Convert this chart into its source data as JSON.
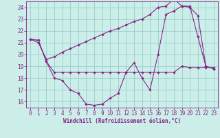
{
  "xlabel": "Windchill (Refroidissement éolien,°C)",
  "bg_color": "#cceee8",
  "grid_color": "#99cccc",
  "line_color": "#882288",
  "spine_color": "#882288",
  "x_ticks": [
    0,
    1,
    2,
    3,
    4,
    5,
    6,
    7,
    8,
    9,
    10,
    11,
    12,
    13,
    14,
    15,
    16,
    17,
    18,
    19,
    20,
    21,
    22,
    23
  ],
  "y_ticks": [
    16,
    17,
    18,
    19,
    20,
    21,
    22,
    23,
    24
  ],
  "ylim": [
    15.5,
    24.5
  ],
  "xlim": [
    -0.5,
    23.5
  ],
  "line1_x": [
    0,
    1,
    2,
    3,
    4,
    5,
    6,
    7,
    8,
    9,
    10,
    11,
    12,
    13,
    14,
    15,
    16,
    17,
    18,
    19,
    20,
    21,
    22,
    23
  ],
  "line1_y": [
    21.3,
    21.2,
    19.4,
    18.5,
    18.5,
    18.5,
    18.5,
    18.5,
    18.5,
    18.5,
    18.5,
    18.5,
    18.5,
    18.5,
    18.5,
    18.5,
    18.5,
    18.5,
    18.5,
    19.0,
    18.9,
    18.9,
    18.9,
    18.9
  ],
  "line2_x": [
    0,
    1,
    2,
    3,
    4,
    5,
    6,
    7,
    8,
    9,
    10,
    11,
    12,
    13,
    14,
    15,
    16,
    17,
    18,
    19,
    20,
    21,
    22,
    23
  ],
  "line2_y": [
    21.3,
    21.2,
    19.4,
    18.0,
    17.8,
    17.0,
    16.7,
    15.8,
    15.7,
    15.8,
    16.3,
    16.7,
    18.5,
    19.3,
    18.0,
    17.0,
    20.0,
    23.4,
    23.7,
    24.1,
    24.1,
    21.5,
    19.0,
    18.8
  ],
  "line3_x": [
    0,
    1,
    2,
    3,
    4,
    5,
    6,
    7,
    8,
    9,
    10,
    11,
    12,
    13,
    14,
    15,
    16,
    17,
    18,
    19,
    20,
    21,
    22,
    23
  ],
  "line3_y": [
    21.3,
    21.0,
    19.6,
    19.8,
    20.2,
    20.5,
    20.8,
    21.1,
    21.4,
    21.7,
    22.0,
    22.2,
    22.5,
    22.8,
    23.0,
    23.4,
    24.0,
    24.1,
    24.7,
    24.1,
    24.0,
    23.3,
    19.0,
    18.8
  ],
  "tick_fontsize": 5.5,
  "xlabel_fontsize": 5.5
}
